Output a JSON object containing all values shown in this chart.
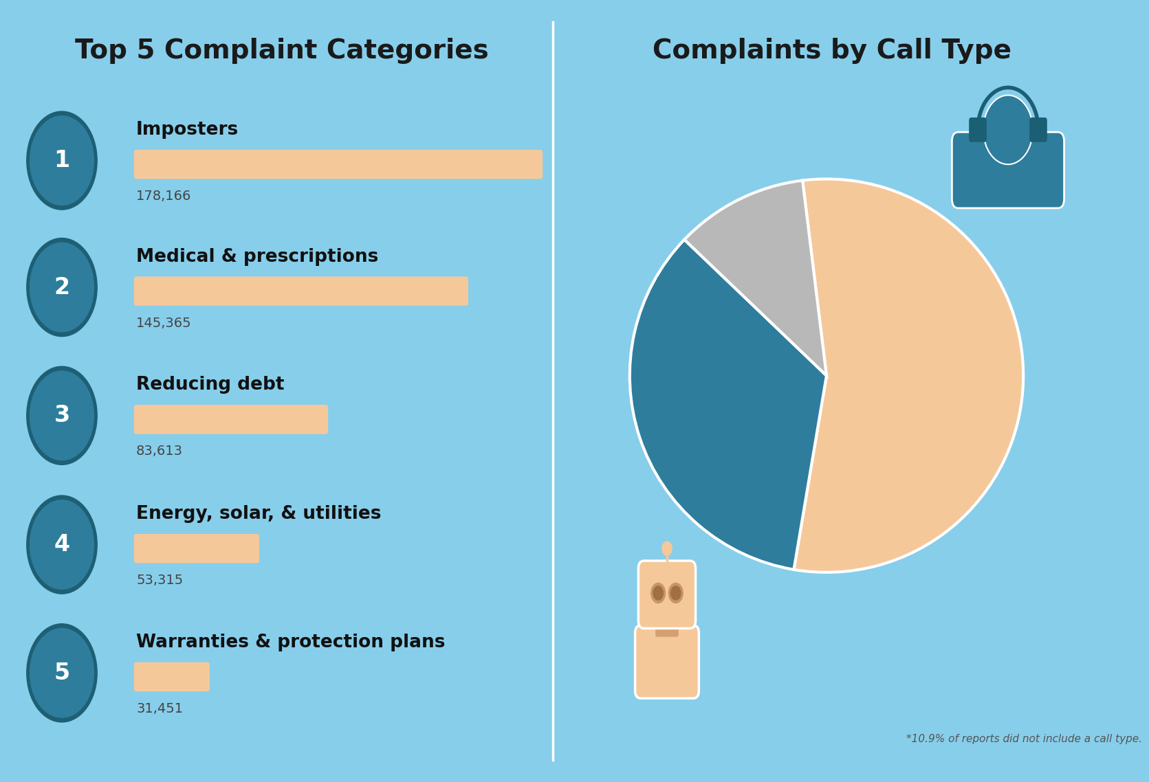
{
  "bg_color": "#87CEEB",
  "divider_color": "#ffffff",
  "left_title": "Top 5 Complaint Categories",
  "right_title": "Complaints by Call Type",
  "title_fontsize": 28,
  "title_color": "#1a1a1a",
  "circle_color": "#2E7D9C",
  "bar_color": "#F5C89A",
  "categories": [
    {
      "rank": "1",
      "name": "Imposters",
      "value": 178166,
      "value_str": "178,166"
    },
    {
      "rank": "2",
      "name": "Medical & prescriptions",
      "value": 145365,
      "value_str": "145,365"
    },
    {
      "rank": "3",
      "name": "Reducing debt",
      "value": 83613,
      "value_str": "83,613"
    },
    {
      "rank": "4",
      "name": "Energy, solar, & utilities",
      "value": 53315,
      "value_str": "53,315"
    },
    {
      "rank": "5",
      "name": "Warranties & protection plans",
      "value": 31451,
      "value_str": "31,451"
    }
  ],
  "pie_data": [
    54.6,
    34.5,
    10.9
  ],
  "pie_colors": [
    "#F5C89A",
    "#2E7D9C",
    "#B8B8B8"
  ],
  "footnote": "*10.9% of reports did not include a call type.",
  "footnote_fontsize": 11,
  "footnote_color": "#555555",
  "name_fontsize": 19,
  "value_fontsize": 14,
  "rank_fontsize": 24,
  "max_value": 178166
}
